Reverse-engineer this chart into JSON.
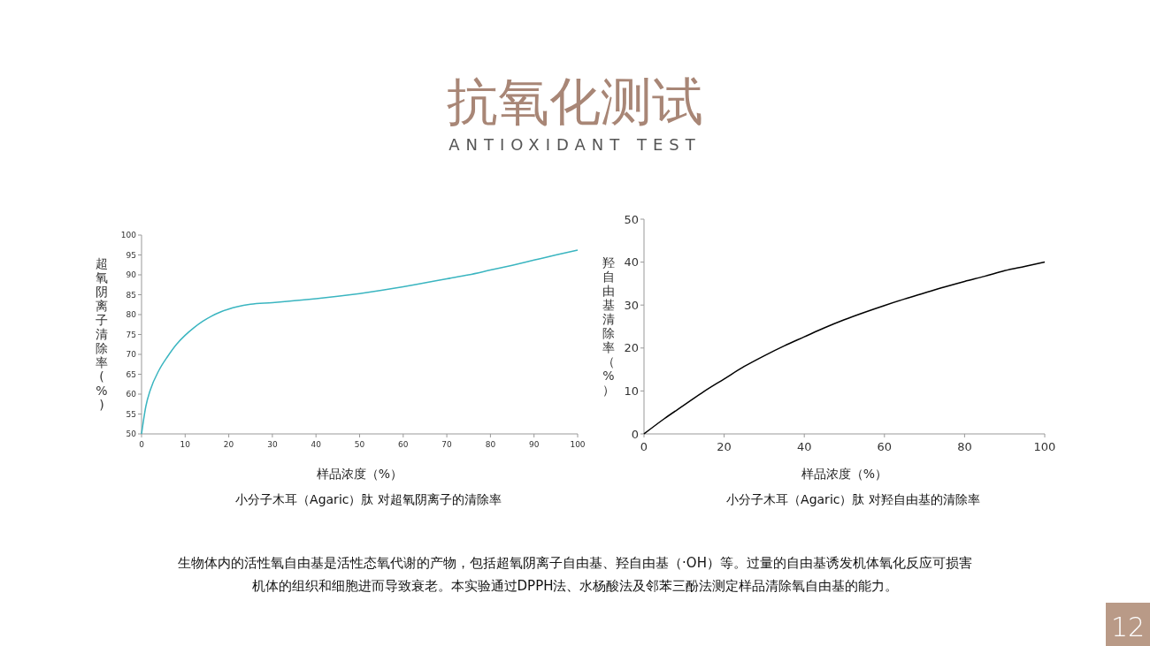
{
  "chart_data": [
    {
      "type": "line",
      "title": "小分子木耳（Agaric）肽 对超氧阴离子的清除率",
      "xlabel": "样品浓度（%）",
      "ylabel": "超氧阴离子清除率(%)",
      "annotations": [
        "抗氧化测试",
        "ANTIOXIDANT TEST",
        "生物体内的活性氧自由基是活性态氧代谢的产物，包括超氧阴离子自由基、羟自由基（·OH）等。过量的自由基诱发机体氧化反应可损害",
        "机体的组织和细胞进而导致衰老。本实验通过DPPH法、水杨酸法及邻苯三酚法测定样品清除氧自由基的能力。",
        "12"
      ],
      "x": [
        0,
        1,
        2,
        4,
        6,
        8,
        10,
        12,
        14,
        16,
        18,
        20,
        22,
        25,
        30,
        35,
        40,
        45,
        50,
        55,
        60,
        65,
        70,
        75,
        80,
        85,
        90,
        95,
        100
      ],
      "series": [
        {
          "color": "#3ab5c0",
          "values": [
            50,
            57,
            61,
            66,
            69.5,
            72.5,
            74.8,
            76.7,
            78.3,
            79.6,
            80.6,
            81.4,
            82,
            82.6,
            83,
            83.5,
            84,
            84.6,
            85.3,
            86.1,
            87,
            88,
            89,
            90,
            91.2,
            92.4,
            93.7,
            95,
            96.2
          ]
        }
      ],
      "xlim": [
        0,
        100
      ],
      "xticks": [
        0,
        10,
        20,
        30,
        40,
        50,
        60,
        70,
        80,
        90,
        100
      ],
      "ylim": [
        50,
        100
      ],
      "yticks": [
        50,
        55,
        60,
        65,
        70,
        75,
        80,
        85,
        90,
        95,
        100
      ],
      "grid": false
    },
    {
      "type": "line",
      "title": "小分子木耳（Agaric）肽 对羟自由基的清除率",
      "xlabel": "样品浓度（%）",
      "ylabel": "羟自由基清除率（%）",
      "x": [
        0,
        5,
        10,
        15,
        20,
        25,
        30,
        35,
        40,
        45,
        50,
        55,
        60,
        65,
        70,
        75,
        80,
        85,
        90,
        95,
        100
      ],
      "series": [
        {
          "color": "#000000",
          "values": [
            0,
            3.5,
            6.7,
            9.9,
            12.8,
            15.7,
            18.2,
            20.5,
            22.6,
            24.7,
            26.6,
            28.3,
            29.9,
            31.4,
            32.8,
            34.2,
            35.5,
            36.7,
            38,
            39,
            40
          ]
        }
      ],
      "xlim": [
        0,
        100
      ],
      "xticks": [
        0,
        20,
        40,
        60,
        80,
        100
      ],
      "ylim": [
        0,
        50
      ],
      "yticks": [
        0,
        10,
        20,
        30,
        40,
        50
      ],
      "grid": false
    }
  ]
}
